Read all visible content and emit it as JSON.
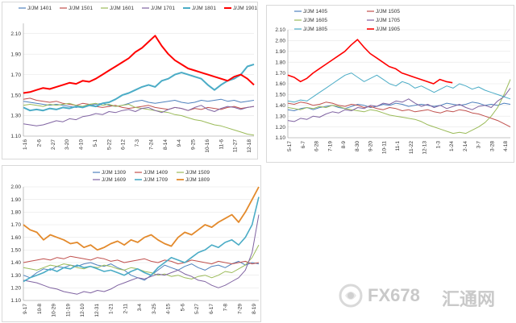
{
  "chart_data": [
    {
      "type": "line",
      "title": "",
      "xlabel": "",
      "ylabel": "",
      "ylim": [
        1.1,
        2.2
      ],
      "yticks": [
        "1.10",
        "1.30",
        "1.50",
        "1.70",
        "1.90",
        "2.10"
      ],
      "x_labels": [
        "1-16",
        "2-6",
        "2-27",
        "3-20",
        "4-10",
        "5-1",
        "5-22",
        "6-12",
        "7-3",
        "7-24",
        "8-14",
        "9-4",
        "9-25",
        "10-16",
        "11-6",
        "11-27",
        "12-18"
      ],
      "legend_position": "top",
      "series": [
        {
          "name": "J/JM 1401",
          "color": "#4f81bd",
          "width": 1,
          "values": [
            1.44,
            1.43,
            1.42,
            1.41,
            1.4,
            1.41,
            1.4,
            1.39,
            1.38,
            1.39,
            1.4,
            1.41,
            1.42,
            1.4,
            1.39,
            1.4,
            1.42,
            1.44,
            1.45,
            1.43,
            1.42,
            1.43,
            1.44,
            1.45,
            1.43,
            1.42,
            1.43,
            1.45,
            1.44,
            1.45,
            1.46,
            1.44,
            1.45,
            1.43,
            1.44,
            1.45
          ]
        },
        {
          "name": "J/JM 1501",
          "color": "#c0504d",
          "width": 1,
          "values": [
            1.46,
            1.47,
            1.45,
            1.44,
            1.43,
            1.44,
            1.42,
            1.41,
            1.4,
            1.42,
            1.41,
            1.39,
            1.38,
            1.39,
            1.4,
            1.38,
            1.37,
            1.38,
            1.39,
            1.4,
            1.38,
            1.37,
            1.36,
            1.38,
            1.37,
            1.35,
            1.37,
            1.36,
            1.38,
            1.37,
            1.36,
            1.38,
            1.39,
            1.37,
            1.38,
            1.39
          ]
        },
        {
          "name": "J/JM 1601",
          "color": "#9bbb59",
          "width": 1,
          "values": [
            1.4,
            1.41,
            1.4,
            1.39,
            1.41,
            1.4,
            1.41,
            1.42,
            1.4,
            1.39,
            1.41,
            1.42,
            1.4,
            1.41,
            1.39,
            1.4,
            1.41,
            1.38,
            1.37,
            1.36,
            1.35,
            1.34,
            1.33,
            1.31,
            1.3,
            1.28,
            1.26,
            1.25,
            1.23,
            1.21,
            1.2,
            1.18,
            1.16,
            1.14,
            1.12,
            1.11
          ]
        },
        {
          "name": "J/JM 1701",
          "color": "#8064a2",
          "width": 1,
          "values": [
            1.22,
            1.21,
            1.2,
            1.21,
            1.23,
            1.25,
            1.24,
            1.27,
            1.26,
            1.29,
            1.3,
            1.32,
            1.31,
            1.34,
            1.33,
            1.35,
            1.36,
            1.34,
            1.37,
            1.38,
            1.35,
            1.33,
            1.36,
            1.38,
            1.37,
            1.35,
            1.38,
            1.4,
            1.36,
            1.34,
            1.37,
            1.39,
            1.38,
            1.36,
            1.38,
            1.39
          ]
        },
        {
          "name": "J/JM 1801",
          "color": "#4bacc6",
          "width": 2,
          "values": [
            1.38,
            1.35,
            1.36,
            1.35,
            1.37,
            1.36,
            1.38,
            1.37,
            1.39,
            1.38,
            1.4,
            1.39,
            1.42,
            1.43,
            1.46,
            1.5,
            1.52,
            1.55,
            1.58,
            1.6,
            1.58,
            1.64,
            1.66,
            1.7,
            1.72,
            1.7,
            1.68,
            1.66,
            1.6,
            1.55,
            1.6,
            1.64,
            1.66,
            1.7,
            1.78,
            1.8
          ]
        },
        {
          "name": "J/JM 1901",
          "color": "#ff0000",
          "width": 2,
          "values": [
            1.52,
            1.53,
            1.55,
            1.57,
            1.56,
            1.58,
            1.6,
            1.62,
            1.61,
            1.64,
            1.63,
            1.66,
            1.7,
            1.74,
            1.78,
            1.82,
            1.86,
            1.92,
            1.96,
            2.02,
            2.08,
            1.98,
            1.9,
            1.84,
            1.8,
            1.76,
            1.74,
            1.72,
            1.7,
            1.68,
            1.66,
            1.64,
            1.68,
            1.7,
            1.66,
            1.6
          ]
        }
      ]
    },
    {
      "type": "line",
      "title": "",
      "xlabel": "",
      "ylabel": "",
      "ylim": [
        1.1,
        2.1
      ],
      "yticks": [
        "1.10",
        "1.20",
        "1.30",
        "1.40",
        "1.50",
        "1.60",
        "1.70",
        "1.80",
        "1.90",
        "2.00",
        "2.10"
      ],
      "x_labels": [
        "5-17",
        "6-7",
        "6-28",
        "7-19",
        "8-9",
        "8-30",
        "9-20",
        "10-11",
        "11-1",
        "11-22",
        "12-13",
        "1-3",
        "1-24",
        "2-14",
        "3-7",
        "3-28",
        "4-18"
      ],
      "legend_position": "top",
      "series": [
        {
          "name": "J/JM 1405",
          "color": "#4f81bd",
          "width": 1,
          "values": [
            1.36,
            1.35,
            1.37,
            1.38,
            1.36,
            1.38,
            1.39,
            1.4,
            1.38,
            1.37,
            1.39,
            1.41,
            1.4,
            1.38,
            1.39,
            1.41,
            1.4,
            1.42,
            1.41,
            1.39,
            1.4,
            1.41,
            1.4,
            1.39,
            1.4,
            1.42,
            1.41,
            1.4,
            1.41,
            1.43,
            1.42,
            1.4,
            1.41,
            1.4,
            1.42,
            1.41
          ]
        },
        {
          "name": "J/JM 1505",
          "color": "#c0504d",
          "width": 1,
          "values": [
            1.42,
            1.41,
            1.43,
            1.42,
            1.4,
            1.41,
            1.43,
            1.42,
            1.4,
            1.39,
            1.41,
            1.4,
            1.38,
            1.39,
            1.37,
            1.36,
            1.38,
            1.37,
            1.35,
            1.36,
            1.34,
            1.35,
            1.36,
            1.34,
            1.33,
            1.35,
            1.34,
            1.36,
            1.35,
            1.33,
            1.32,
            1.3,
            1.28,
            1.26,
            1.23,
            1.2
          ]
        },
        {
          "name": "J/JM 1605",
          "color": "#9bbb59",
          "width": 1,
          "values": [
            1.38,
            1.37,
            1.36,
            1.38,
            1.37,
            1.39,
            1.38,
            1.4,
            1.39,
            1.37,
            1.36,
            1.35,
            1.34,
            1.36,
            1.35,
            1.33,
            1.31,
            1.3,
            1.29,
            1.28,
            1.27,
            1.25,
            1.22,
            1.2,
            1.18,
            1.16,
            1.14,
            1.15,
            1.14,
            1.17,
            1.2,
            1.24,
            1.3,
            1.38,
            1.5,
            1.64
          ]
        },
        {
          "name": "J/JM 1705",
          "color": "#8064a2",
          "width": 1,
          "values": [
            1.26,
            1.25,
            1.28,
            1.27,
            1.3,
            1.29,
            1.32,
            1.34,
            1.33,
            1.36,
            1.35,
            1.38,
            1.37,
            1.4,
            1.39,
            1.42,
            1.41,
            1.44,
            1.43,
            1.46,
            1.42,
            1.39,
            1.41,
            1.38,
            1.4,
            1.37,
            1.39,
            1.41,
            1.38,
            1.36,
            1.39,
            1.4,
            1.38,
            1.44,
            1.48,
            1.56
          ]
        },
        {
          "name": "J/JM 1805",
          "color": "#4bacc6",
          "width": 1,
          "values": [
            1.44,
            1.43,
            1.45,
            1.44,
            1.48,
            1.52,
            1.56,
            1.6,
            1.64,
            1.68,
            1.7,
            1.66,
            1.62,
            1.65,
            1.68,
            1.64,
            1.6,
            1.58,
            1.62,
            1.6,
            1.56,
            1.58,
            1.55,
            1.52,
            1.55,
            1.58,
            1.56,
            1.6,
            1.58,
            1.55,
            1.57,
            1.54,
            1.52,
            1.5,
            1.48,
            1.46
          ]
        },
        {
          "name": "J/JM 1905",
          "color": "#ff0000",
          "width": 1.6,
          "values": [
            1.68,
            1.66,
            1.62,
            1.65,
            1.7,
            1.74,
            1.78,
            1.82,
            1.86,
            1.9,
            1.96,
            2.01,
            1.94,
            1.88,
            1.84,
            1.8,
            1.76,
            1.74,
            1.7,
            1.68,
            1.66,
            1.64,
            1.62,
            1.6,
            1.64,
            1.62,
            1.61
          ]
        }
      ]
    },
    {
      "type": "line",
      "title": "",
      "xlabel": "",
      "ylabel": "",
      "ylim": [
        1.1,
        2.0
      ],
      "yticks": [
        "1.10",
        "1.20",
        "1.30",
        "1.40",
        "1.50",
        "1.60",
        "1.70",
        "1.80",
        "1.90",
        "2.00"
      ],
      "x_labels": [
        "9-17",
        "10-8",
        "10-29",
        "11-19",
        "12-10",
        "12-31",
        "1-21",
        "2-11",
        "3-4",
        "3-25",
        "4-15",
        "5-6",
        "5-27",
        "6-17",
        "7-8",
        "7-29",
        "8-19"
      ],
      "legend_position": "top",
      "series": [
        {
          "name": "J/JM 1309",
          "color": "#4f81bd",
          "width": 1,
          "values": [
            1.3,
            1.28,
            1.32,
            1.35,
            1.34,
            1.37,
            1.36,
            1.38,
            1.37,
            1.39,
            1.4,
            1.38,
            1.37,
            1.39,
            1.36,
            1.34,
            1.3,
            1.28,
            1.26,
            1.3,
            1.34,
            1.38,
            1.36,
            1.34,
            1.37,
            1.39,
            1.36,
            1.34,
            1.37,
            1.38,
            1.36,
            1.39,
            1.41,
            1.38,
            1.4,
            1.39
          ]
        },
        {
          "name": "J/JM 1409",
          "color": "#c0504d",
          "width": 1,
          "values": [
            1.4,
            1.41,
            1.42,
            1.43,
            1.42,
            1.44,
            1.43,
            1.45,
            1.44,
            1.43,
            1.42,
            1.44,
            1.43,
            1.41,
            1.42,
            1.4,
            1.41,
            1.42,
            1.43,
            1.41,
            1.4,
            1.42,
            1.41,
            1.39,
            1.4,
            1.42,
            1.41,
            1.4,
            1.39,
            1.41,
            1.4,
            1.39,
            1.4,
            1.41,
            1.39,
            1.4
          ]
        },
        {
          "name": "J/JM 1509",
          "color": "#9bbb59",
          "width": 1,
          "values": [
            1.36,
            1.35,
            1.34,
            1.36,
            1.38,
            1.37,
            1.39,
            1.38,
            1.36,
            1.35,
            1.37,
            1.36,
            1.38,
            1.37,
            1.35,
            1.34,
            1.36,
            1.35,
            1.33,
            1.32,
            1.3,
            1.31,
            1.29,
            1.3,
            1.28,
            1.27,
            1.29,
            1.3,
            1.28,
            1.3,
            1.33,
            1.32,
            1.35,
            1.38,
            1.44,
            1.54
          ]
        },
        {
          "name": "J/JM 1609",
          "color": "#8064a2",
          "width": 1,
          "values": [
            1.26,
            1.25,
            1.24,
            1.22,
            1.2,
            1.19,
            1.17,
            1.16,
            1.15,
            1.17,
            1.16,
            1.18,
            1.17,
            1.19,
            1.22,
            1.24,
            1.26,
            1.28,
            1.27,
            1.29,
            1.31,
            1.3,
            1.32,
            1.34,
            1.31,
            1.29,
            1.26,
            1.25,
            1.22,
            1.2,
            1.22,
            1.25,
            1.28,
            1.34,
            1.48,
            1.78
          ]
        },
        {
          "name": "J/JM 1709",
          "color": "#4bacc6",
          "width": 1.6,
          "values": [
            1.25,
            1.28,
            1.3,
            1.32,
            1.35,
            1.33,
            1.36,
            1.35,
            1.38,
            1.36,
            1.37,
            1.35,
            1.33,
            1.34,
            1.32,
            1.3,
            1.33,
            1.35,
            1.32,
            1.3,
            1.36,
            1.4,
            1.44,
            1.42,
            1.4,
            1.44,
            1.48,
            1.5,
            1.54,
            1.52,
            1.56,
            1.58,
            1.54,
            1.6,
            1.7,
            1.92
          ]
        },
        {
          "name": "J/JM 1809",
          "color": "#e38a2c",
          "width": 1.8,
          "values": [
            1.7,
            1.66,
            1.64,
            1.58,
            1.62,
            1.6,
            1.58,
            1.55,
            1.56,
            1.52,
            1.54,
            1.5,
            1.52,
            1.55,
            1.57,
            1.54,
            1.58,
            1.56,
            1.6,
            1.62,
            1.58,
            1.55,
            1.53,
            1.6,
            1.64,
            1.62,
            1.66,
            1.7,
            1.68,
            1.72,
            1.75,
            1.78,
            1.72,
            1.8,
            1.9,
            2.0
          ]
        }
      ]
    }
  ],
  "watermark": {
    "brand": "FX678",
    "brand_cn": "汇通网",
    "logo_icon": "fx678-logo-icon"
  }
}
